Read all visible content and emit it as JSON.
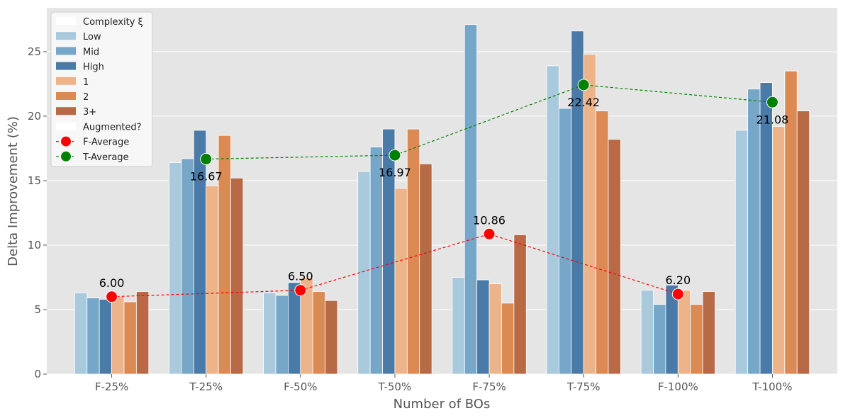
{
  "chart_data": {
    "type": "bar",
    "xlabel": "Number of BOs",
    "ylabel": "Delta Improvement (%)",
    "ylim": [
      0,
      28.4
    ],
    "yticks": [
      0,
      5,
      10,
      15,
      20,
      25
    ],
    "grid": true,
    "legend_position": "upper-left",
    "categories": [
      "F-25%",
      "T-25%",
      "F-50%",
      "T-50%",
      "F-75%",
      "T-75%",
      "F-100%",
      "T-100%"
    ],
    "legend_groups": [
      {
        "title": "Complexity ξ",
        "entries": [
          "Low",
          "Mid",
          "High"
        ]
      },
      {
        "title": "",
        "entries": [
          "1",
          "2",
          "3+"
        ]
      },
      {
        "title": "Augmented?",
        "entries": [
          "F-Average",
          "T-Average"
        ]
      }
    ],
    "series": [
      {
        "name": "Low",
        "color": "#a9c9dd",
        "values": [
          6.3,
          16.4,
          6.3,
          15.7,
          7.5,
          23.9,
          6.5,
          18.9
        ]
      },
      {
        "name": "Mid",
        "color": "#76a6c8",
        "values": [
          5.9,
          16.7,
          6.1,
          17.6,
          27.1,
          20.6,
          5.4,
          22.1
        ]
      },
      {
        "name": "High",
        "color": "#4a7aa8",
        "values": [
          5.8,
          18.9,
          7.1,
          19.0,
          7.3,
          26.6,
          6.9,
          22.6
        ]
      },
      {
        "name": "1",
        "color": "#edb48a",
        "values": [
          6.0,
          14.6,
          7.5,
          14.4,
          7.0,
          24.8,
          6.5,
          19.2
        ]
      },
      {
        "name": "2",
        "color": "#dc8a53",
        "values": [
          5.6,
          18.5,
          6.4,
          19.0,
          5.5,
          20.4,
          5.4,
          23.5
        ]
      },
      {
        "name": "3+",
        "color": "#b76a45",
        "values": [
          6.4,
          15.2,
          5.7,
          16.3,
          10.8,
          18.2,
          6.4,
          20.4
        ]
      }
    ],
    "lines": [
      {
        "name": "F-Average",
        "color": "#ff0000",
        "x": [
          "F-25%",
          "F-50%",
          "F-75%",
          "F-100%"
        ],
        "values": [
          6.0,
          6.5,
          10.86,
          6.2
        ],
        "labels": [
          "6.00",
          "6.50",
          "10.86",
          "6.20"
        ],
        "label_position": "above"
      },
      {
        "name": "T-Average",
        "color": "#008000",
        "x": [
          "T-25%",
          "T-50%",
          "T-75%",
          "T-100%"
        ],
        "values": [
          16.67,
          16.97,
          22.42,
          21.08
        ],
        "labels": [
          "16.67",
          "16.97",
          "22.42",
          "21.08"
        ],
        "label_position": "below"
      }
    ]
  }
}
